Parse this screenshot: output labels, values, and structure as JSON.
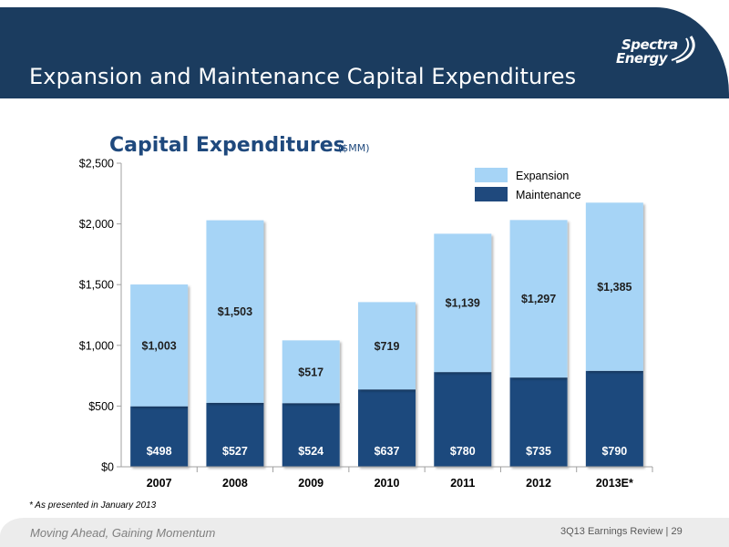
{
  "header": {
    "title": "Expansion and Maintenance Capital Expenditures",
    "logo_line1": "Spectra",
    "logo_line2": "Energy",
    "band_color": "#1b3c5f"
  },
  "chart_data": {
    "type": "bar",
    "stacked": true,
    "title": "Capital Expenditures",
    "unit_label": "($MM)",
    "categories": [
      "2007",
      "2008",
      "2009",
      "2010",
      "2011",
      "2012",
      "2013E*"
    ],
    "series": [
      {
        "name": "Maintenance",
        "color": "#1f497d",
        "label_color": "#ffffff",
        "values": [
          498,
          527,
          524,
          637,
          780,
          735,
          790
        ],
        "labels": [
          "$498",
          "$527",
          "$524",
          "$637",
          "$780",
          "$735",
          "$790"
        ]
      },
      {
        "name": "Expansion",
        "color": "#a6d4f6",
        "label_color": "#1f1f1f",
        "values": [
          1003,
          1503,
          517,
          719,
          1139,
          1297,
          1385
        ],
        "labels": [
          "$1,003",
          "$1,503",
          "$517",
          "$719",
          "$1,139",
          "$1,297",
          "$1,385"
        ]
      }
    ],
    "legend_order": [
      "Expansion",
      "Maintenance"
    ],
    "legend_position": "top-right",
    "ylim": [
      0,
      2500
    ],
    "yticks": [
      0,
      500,
      1000,
      1500,
      2000,
      2500
    ],
    "ytick_labels": [
      "$0",
      "$500",
      "$1,000",
      "$1,500",
      "$2,000",
      "$2,500"
    ],
    "xlabel": "",
    "ylabel": "",
    "grid": false
  },
  "footnote": "* As presented in January 2013",
  "footer": {
    "tagline": "Moving Ahead, Gaining Momentum",
    "right_text": "3Q13 Earnings Review  |  29"
  }
}
